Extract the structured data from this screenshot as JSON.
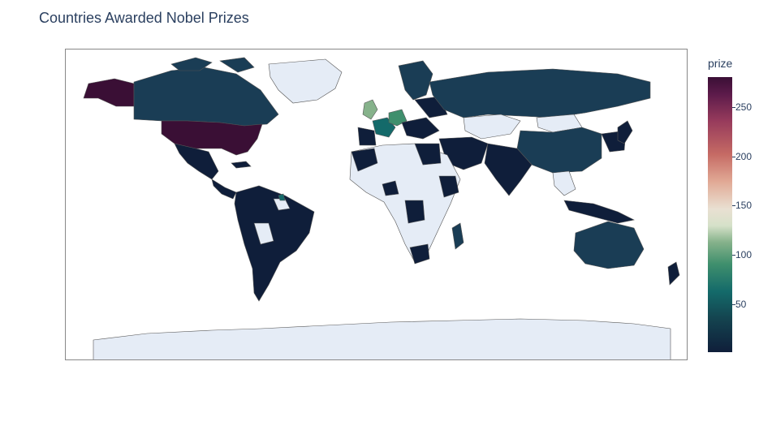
{
  "title": "Countries Awarded Nobel Prizes",
  "colorbar": {
    "title": "prize",
    "ticks": [
      "250",
      "200",
      "150",
      "100",
      "50"
    ],
    "tick_values": [
      250,
      200,
      150,
      100,
      50
    ],
    "range": [
      1,
      281
    ]
  },
  "colors": {
    "no_data": "#e5ecf6",
    "low": "#0f1e3a",
    "mid_low": "#1a3d55",
    "mid": "#146a6a",
    "light_green": "#86b28b",
    "high": "#3a0f35",
    "border": "#555555"
  },
  "chart_data": {
    "type": "choropleth",
    "title": "Countries Awarded Nobel Prizes",
    "colorbar_title": "prize",
    "regions": [
      {
        "name": "United States",
        "value": 281
      },
      {
        "name": "United Kingdom",
        "value": 105
      },
      {
        "name": "Germany",
        "value": 80
      },
      {
        "name": "France",
        "value": 57
      },
      {
        "name": "Canada",
        "value": 20
      },
      {
        "name": "Russia",
        "value": 20
      },
      {
        "name": "Australia",
        "value": 12
      },
      {
        "name": "China",
        "value": 9
      },
      {
        "name": "Brazil",
        "value": 1
      }
    ]
  }
}
